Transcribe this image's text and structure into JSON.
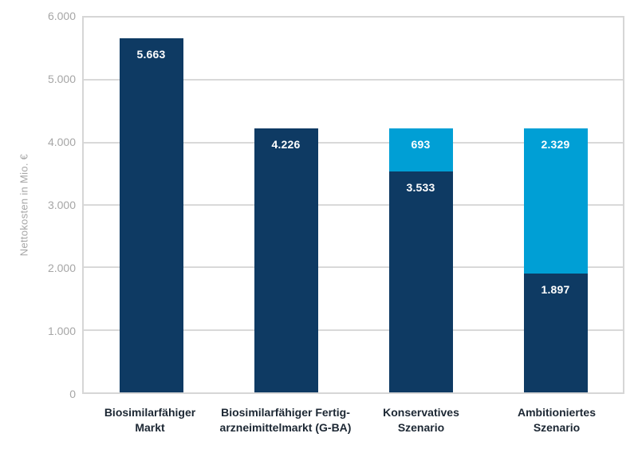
{
  "chart_data": {
    "type": "bar",
    "stacked": true,
    "title": "",
    "xlabel": "",
    "ylabel": "Nettokosten in Mio. €",
    "ylim": [
      0,
      6000
    ],
    "grid": true,
    "legend": "none",
    "yticks": [
      {
        "value": 0,
        "label": "0"
      },
      {
        "value": 1000,
        "label": "1.000"
      },
      {
        "value": 2000,
        "label": "2.000"
      },
      {
        "value": 3000,
        "label": "3.000"
      },
      {
        "value": 4000,
        "label": "4.000"
      },
      {
        "value": 5000,
        "label": "5.000"
      },
      {
        "value": 6000,
        "label": "6.000"
      }
    ],
    "categories": [
      {
        "line1": "Biosimilarfähiger",
        "line2": "Markt"
      },
      {
        "line1": "Biosimilarfähiger Fertig-",
        "line2": "arzneimittelmarkt (G-BA)"
      },
      {
        "line1": "Konservatives",
        "line2": "Szenario"
      },
      {
        "line1": "Ambitioniertes",
        "line2": "Szenario"
      }
    ],
    "series": [
      {
        "name": "dark-segment",
        "color": "#0e3a63",
        "values": [
          5663,
          4226,
          3533,
          1897
        ],
        "labels": [
          "5.663",
          "4.226",
          "3.533",
          "1.897"
        ]
      },
      {
        "name": "light-segment",
        "color": "#009fd5",
        "values": [
          0,
          0,
          693,
          2329
        ],
        "labels": [
          "",
          "",
          "693",
          "2.329"
        ]
      }
    ]
  },
  "colors": {
    "bar_dark": "#0e3a63",
    "bar_light": "#009fd5",
    "axis_text": "#a6a6a6",
    "gridline": "#d9d9d9",
    "category_text": "#1c2733",
    "value_text": "#ffffff",
    "background": "#ffffff"
  }
}
